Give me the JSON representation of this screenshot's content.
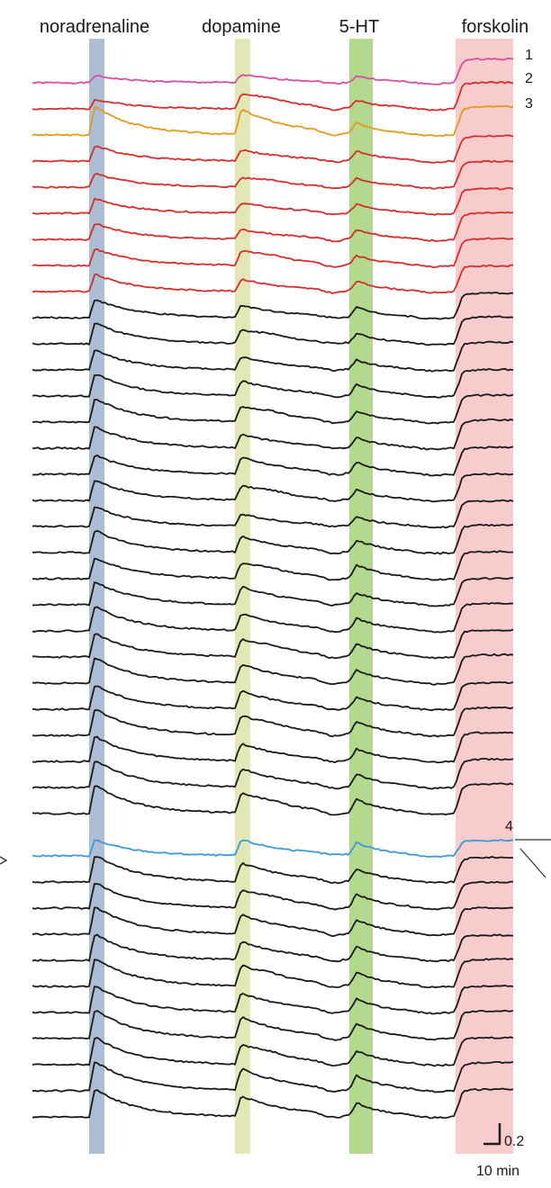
{
  "chart_data": {
    "type": "line",
    "title": "",
    "xlabel": "",
    "ylabel": "",
    "stimuli": [
      {
        "label": "noradrenaline",
        "color": "#9fb3cc"
      },
      {
        "label": "dopamine",
        "color": "#dde3a8"
      },
      {
        "label": "5-HT",
        "color": "#a6d27a"
      },
      {
        "label": "forskolin",
        "color": "#f7c3c3"
      }
    ],
    "trace_labels": [
      "1",
      "2",
      "3",
      "4"
    ],
    "scale_bar": {
      "y_label": "0.2",
      "x_label": "10 min"
    },
    "series": [
      {
        "color": "#d84fa0",
        "nor": 0.22,
        "dop": 0.26,
        "ht": 0.2,
        "dip": 0.06,
        "fsk": 0.78
      },
      {
        "color": "#d62d2d",
        "nor": 0.3,
        "dop": 0.5,
        "ht": 0.24,
        "dip": 0.1,
        "fsk": 0.86
      },
      {
        "color": "#e59a1d",
        "nor": 0.9,
        "dop": 0.82,
        "ht": 0.32,
        "dip": 0.14,
        "fsk": 0.92
      },
      {
        "color": "#d62d2d",
        "nor": 0.48,
        "dop": 0.36,
        "ht": 0.3,
        "dip": 0.08,
        "fsk": 0.82
      },
      {
        "color": "#d62d2d",
        "nor": 0.42,
        "dop": 0.3,
        "ht": 0.26,
        "dip": 0.08,
        "fsk": 0.84
      },
      {
        "color": "#d62d2d",
        "nor": 0.46,
        "dop": 0.34,
        "ht": 0.28,
        "dip": 0.1,
        "fsk": 0.8
      },
      {
        "color": "#d62d2d",
        "nor": 0.5,
        "dop": 0.32,
        "ht": 0.3,
        "dip": 0.1,
        "fsk": 0.86
      },
      {
        "color": "#d62d2d",
        "nor": 0.52,
        "dop": 0.48,
        "ht": 0.28,
        "dip": 0.12,
        "fsk": 0.88
      },
      {
        "color": "#d62d2d",
        "nor": 0.54,
        "dop": 0.4,
        "ht": 0.3,
        "dip": 0.1,
        "fsk": 0.84
      },
      {
        "color": "#1a1a1a",
        "nor": 0.58,
        "dop": 0.4,
        "ht": 0.3,
        "dip": 0.06,
        "fsk": 0.8
      },
      {
        "color": "#1a1a1a",
        "nor": 0.66,
        "dop": 0.44,
        "ht": 0.3,
        "dip": 0.06,
        "fsk": 0.88
      },
      {
        "color": "#1a1a1a",
        "nor": 0.62,
        "dop": 0.42,
        "ht": 0.28,
        "dip": 0.08,
        "fsk": 0.9
      },
      {
        "color": "#1a1a1a",
        "nor": 0.7,
        "dop": 0.48,
        "ht": 0.34,
        "dip": 0.1,
        "fsk": 0.86
      },
      {
        "color": "#1a1a1a",
        "nor": 0.74,
        "dop": 0.5,
        "ht": 0.32,
        "dip": 0.1,
        "fsk": 0.88
      },
      {
        "color": "#1a1a1a",
        "nor": 0.68,
        "dop": 0.44,
        "ht": 0.3,
        "dip": 0.08,
        "fsk": 0.92
      },
      {
        "color": "#1a1a1a",
        "nor": 0.6,
        "dop": 0.56,
        "ht": 0.34,
        "dip": 0.1,
        "fsk": 0.88
      },
      {
        "color": "#1a1a1a",
        "nor": 0.64,
        "dop": 0.46,
        "ht": 0.3,
        "dip": 0.08,
        "fsk": 0.86
      },
      {
        "color": "#1a1a1a",
        "nor": 0.62,
        "dop": 0.4,
        "ht": 0.28,
        "dip": 0.06,
        "fsk": 0.84
      },
      {
        "color": "#1a1a1a",
        "nor": 0.7,
        "dop": 0.52,
        "ht": 0.36,
        "dip": 0.1,
        "fsk": 0.9
      },
      {
        "color": "#1a1a1a",
        "nor": 0.66,
        "dop": 0.5,
        "ht": 0.4,
        "dip": 0.12,
        "fsk": 0.88
      },
      {
        "color": "#1a1a1a",
        "nor": 0.72,
        "dop": 0.58,
        "ht": 0.34,
        "dip": 0.1,
        "fsk": 0.86
      },
      {
        "color": "#1a1a1a",
        "nor": 0.78,
        "dop": 0.54,
        "ht": 0.36,
        "dip": 0.1,
        "fsk": 0.9
      },
      {
        "color": "#1a1a1a",
        "nor": 0.74,
        "dop": 0.56,
        "ht": 0.38,
        "dip": 0.12,
        "fsk": 0.88
      },
      {
        "color": "#1a1a1a",
        "nor": 0.8,
        "dop": 0.6,
        "ht": 0.36,
        "dip": 0.12,
        "fsk": 0.92
      },
      {
        "color": "#1a1a1a",
        "nor": 0.76,
        "dop": 0.58,
        "ht": 0.34,
        "dip": 0.1,
        "fsk": 0.86
      },
      {
        "color": "#1a1a1a",
        "nor": 0.82,
        "dop": 0.62,
        "ht": 0.4,
        "dip": 0.12,
        "fsk": 0.9
      },
      {
        "color": "#1a1a1a",
        "nor": 0.78,
        "dop": 0.56,
        "ht": 0.36,
        "dip": 0.1,
        "fsk": 0.94
      },
      {
        "color": "#1a1a1a",
        "nor": 0.86,
        "dop": 0.6,
        "ht": 0.38,
        "dip": 0.12,
        "fsk": 0.92
      },
      {
        "color": "#1a1a1a",
        "nor": 0.9,
        "dop": 0.64,
        "ht": 0.4,
        "dip": 0.14,
        "fsk": 0.96
      },
      {
        "color": "#3a9ad9",
        "nor": 0.5,
        "dop": 0.52,
        "ht": 0.4,
        "dip": 0.04,
        "fsk": 0.5
      },
      {
        "color": "#1a1a1a",
        "nor": 0.84,
        "dop": 0.6,
        "ht": 0.38,
        "dip": 0.12,
        "fsk": 0.8
      },
      {
        "color": "#1a1a1a",
        "nor": 0.8,
        "dop": 0.58,
        "ht": 0.4,
        "dip": 0.12,
        "fsk": 0.84
      },
      {
        "color": "#1a1a1a",
        "nor": 0.86,
        "dop": 0.62,
        "ht": 0.42,
        "dip": 0.14,
        "fsk": 0.86
      },
      {
        "color": "#1a1a1a",
        "nor": 0.82,
        "dop": 0.6,
        "ht": 0.38,
        "dip": 0.12,
        "fsk": 0.82
      },
      {
        "color": "#1a1a1a",
        "nor": 0.88,
        "dop": 0.66,
        "ht": 0.4,
        "dip": 0.14,
        "fsk": 0.88
      },
      {
        "color": "#1a1a1a",
        "nor": 0.84,
        "dop": 0.62,
        "ht": 0.38,
        "dip": 0.12,
        "fsk": 0.86
      },
      {
        "color": "#1a1a1a",
        "nor": 0.9,
        "dop": 0.68,
        "ht": 0.42,
        "dip": 0.14,
        "fsk": 0.9
      },
      {
        "color": "#1a1a1a",
        "nor": 0.86,
        "dop": 0.64,
        "ht": 0.4,
        "dip": 0.12,
        "fsk": 0.88
      },
      {
        "color": "#1a1a1a",
        "nor": 0.92,
        "dop": 0.7,
        "ht": 0.44,
        "dip": 0.14,
        "fsk": 0.92
      },
      {
        "color": "#1a1a1a",
        "nor": 0.88,
        "dop": 0.66,
        "ht": 0.4,
        "dip": 0.12,
        "fsk": 0.9
      }
    ]
  }
}
